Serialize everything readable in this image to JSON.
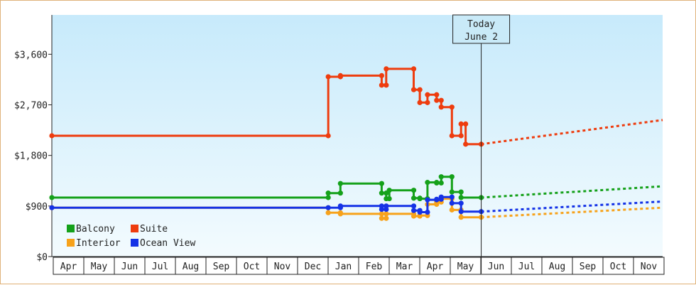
{
  "chart_data": {
    "type": "line",
    "title": "",
    "xlabel": "",
    "ylabel": "",
    "ylim": [
      0,
      4300
    ],
    "y_ticks": [
      {
        "value": 0,
        "label": "$0"
      },
      {
        "value": 900,
        "label": "$900"
      },
      {
        "value": 1800,
        "label": "$1,800"
      },
      {
        "value": 2700,
        "label": "$2,700"
      },
      {
        "value": 3600,
        "label": "$3,600"
      }
    ],
    "x_months": [
      "Apr",
      "May",
      "Jun",
      "Jul",
      "Aug",
      "Sep",
      "Oct",
      "Nov",
      "Dec",
      "Jan",
      "Feb",
      "Mar",
      "Apr",
      "May",
      "Jun",
      "Jul",
      "Aug",
      "Sep",
      "Oct",
      "Nov"
    ],
    "today_marker": {
      "line1": "Today",
      "line2": "June 2",
      "x": 14.06
    },
    "grid": false,
    "legend_placement": "bottom-left",
    "series": [
      {
        "name": "Balcony",
        "color": "#15a11a",
        "values": [
          [
            0,
            1050
          ],
          [
            9.05,
            1050
          ],
          [
            9.05,
            1130
          ],
          [
            9.45,
            1130
          ],
          [
            9.45,
            1300
          ],
          [
            10.8,
            1300
          ],
          [
            10.8,
            1130
          ],
          [
            10.95,
            1130
          ],
          [
            10.95,
            1030
          ],
          [
            11.05,
            1030
          ],
          [
            11.05,
            1180
          ],
          [
            11.85,
            1180
          ],
          [
            11.85,
            1040
          ],
          [
            12.05,
            1040
          ],
          [
            12.05,
            1030
          ],
          [
            12.3,
            1030
          ],
          [
            12.3,
            1320
          ],
          [
            12.6,
            1320
          ],
          [
            12.6,
            1310
          ],
          [
            12.75,
            1310
          ],
          [
            12.75,
            1420
          ],
          [
            13.1,
            1420
          ],
          [
            13.1,
            1150
          ],
          [
            13.4,
            1150
          ],
          [
            13.4,
            1050
          ],
          [
            14.06,
            1050
          ]
        ],
        "projection": [
          [
            14.06,
            1050
          ],
          [
            20,
            1250
          ]
        ]
      },
      {
        "name": "Suite",
        "color": "#ee3c0e",
        "values": [
          [
            0,
            2150
          ],
          [
            9.05,
            2150
          ],
          [
            9.05,
            3200
          ],
          [
            9.45,
            3200
          ],
          [
            9.45,
            3220
          ],
          [
            10.8,
            3220
          ],
          [
            10.8,
            3050
          ],
          [
            10.95,
            3050
          ],
          [
            10.95,
            3340
          ],
          [
            11.85,
            3340
          ],
          [
            11.85,
            2970
          ],
          [
            12.05,
            2970
          ],
          [
            12.05,
            2740
          ],
          [
            12.3,
            2740
          ],
          [
            12.3,
            2880
          ],
          [
            12.6,
            2880
          ],
          [
            12.6,
            2780
          ],
          [
            12.75,
            2780
          ],
          [
            12.75,
            2660
          ],
          [
            13.1,
            2660
          ],
          [
            13.1,
            2150
          ],
          [
            13.4,
            2150
          ],
          [
            13.4,
            2360
          ],
          [
            13.55,
            2360
          ],
          [
            13.55,
            2000
          ],
          [
            14.06,
            2000
          ]
        ],
        "projection": [
          [
            14.06,
            2000
          ],
          [
            20,
            2430
          ]
        ]
      },
      {
        "name": "Interior",
        "color": "#f7a21b",
        "values": [
          [
            0,
            870
          ],
          [
            9.05,
            870
          ],
          [
            9.05,
            780
          ],
          [
            9.45,
            780
          ],
          [
            9.45,
            760
          ],
          [
            10.8,
            760
          ],
          [
            10.8,
            680
          ],
          [
            10.95,
            680
          ],
          [
            10.95,
            760
          ],
          [
            11.85,
            760
          ],
          [
            11.85,
            720
          ],
          [
            12.05,
            720
          ],
          [
            12.05,
            730
          ],
          [
            12.3,
            730
          ],
          [
            12.3,
            930
          ],
          [
            12.6,
            930
          ],
          [
            12.6,
            970
          ],
          [
            12.75,
            970
          ],
          [
            12.75,
            1030
          ],
          [
            13.1,
            1030
          ],
          [
            13.1,
            830
          ],
          [
            13.4,
            830
          ],
          [
            13.4,
            700
          ],
          [
            14.06,
            700
          ]
        ],
        "projection": [
          [
            14.06,
            700
          ],
          [
            20,
            870
          ]
        ]
      },
      {
        "name": "Ocean View",
        "color": "#1432e6",
        "values": [
          [
            0,
            870
          ],
          [
            9.05,
            870
          ],
          [
            9.45,
            870
          ],
          [
            9.45,
            900
          ],
          [
            10.8,
            900
          ],
          [
            10.8,
            840
          ],
          [
            10.95,
            840
          ],
          [
            10.95,
            900
          ],
          [
            11.85,
            900
          ],
          [
            11.85,
            820
          ],
          [
            12.05,
            820
          ],
          [
            12.05,
            790
          ],
          [
            12.3,
            790
          ],
          [
            12.3,
            1010
          ],
          [
            12.6,
            1010
          ],
          [
            12.6,
            1020
          ],
          [
            12.75,
            1020
          ],
          [
            12.75,
            1060
          ],
          [
            13.1,
            1060
          ],
          [
            13.1,
            950
          ],
          [
            13.4,
            950
          ],
          [
            13.4,
            800
          ],
          [
            14.06,
            800
          ]
        ],
        "projection": [
          [
            14.06,
            800
          ],
          [
            20,
            980
          ]
        ]
      }
    ]
  }
}
